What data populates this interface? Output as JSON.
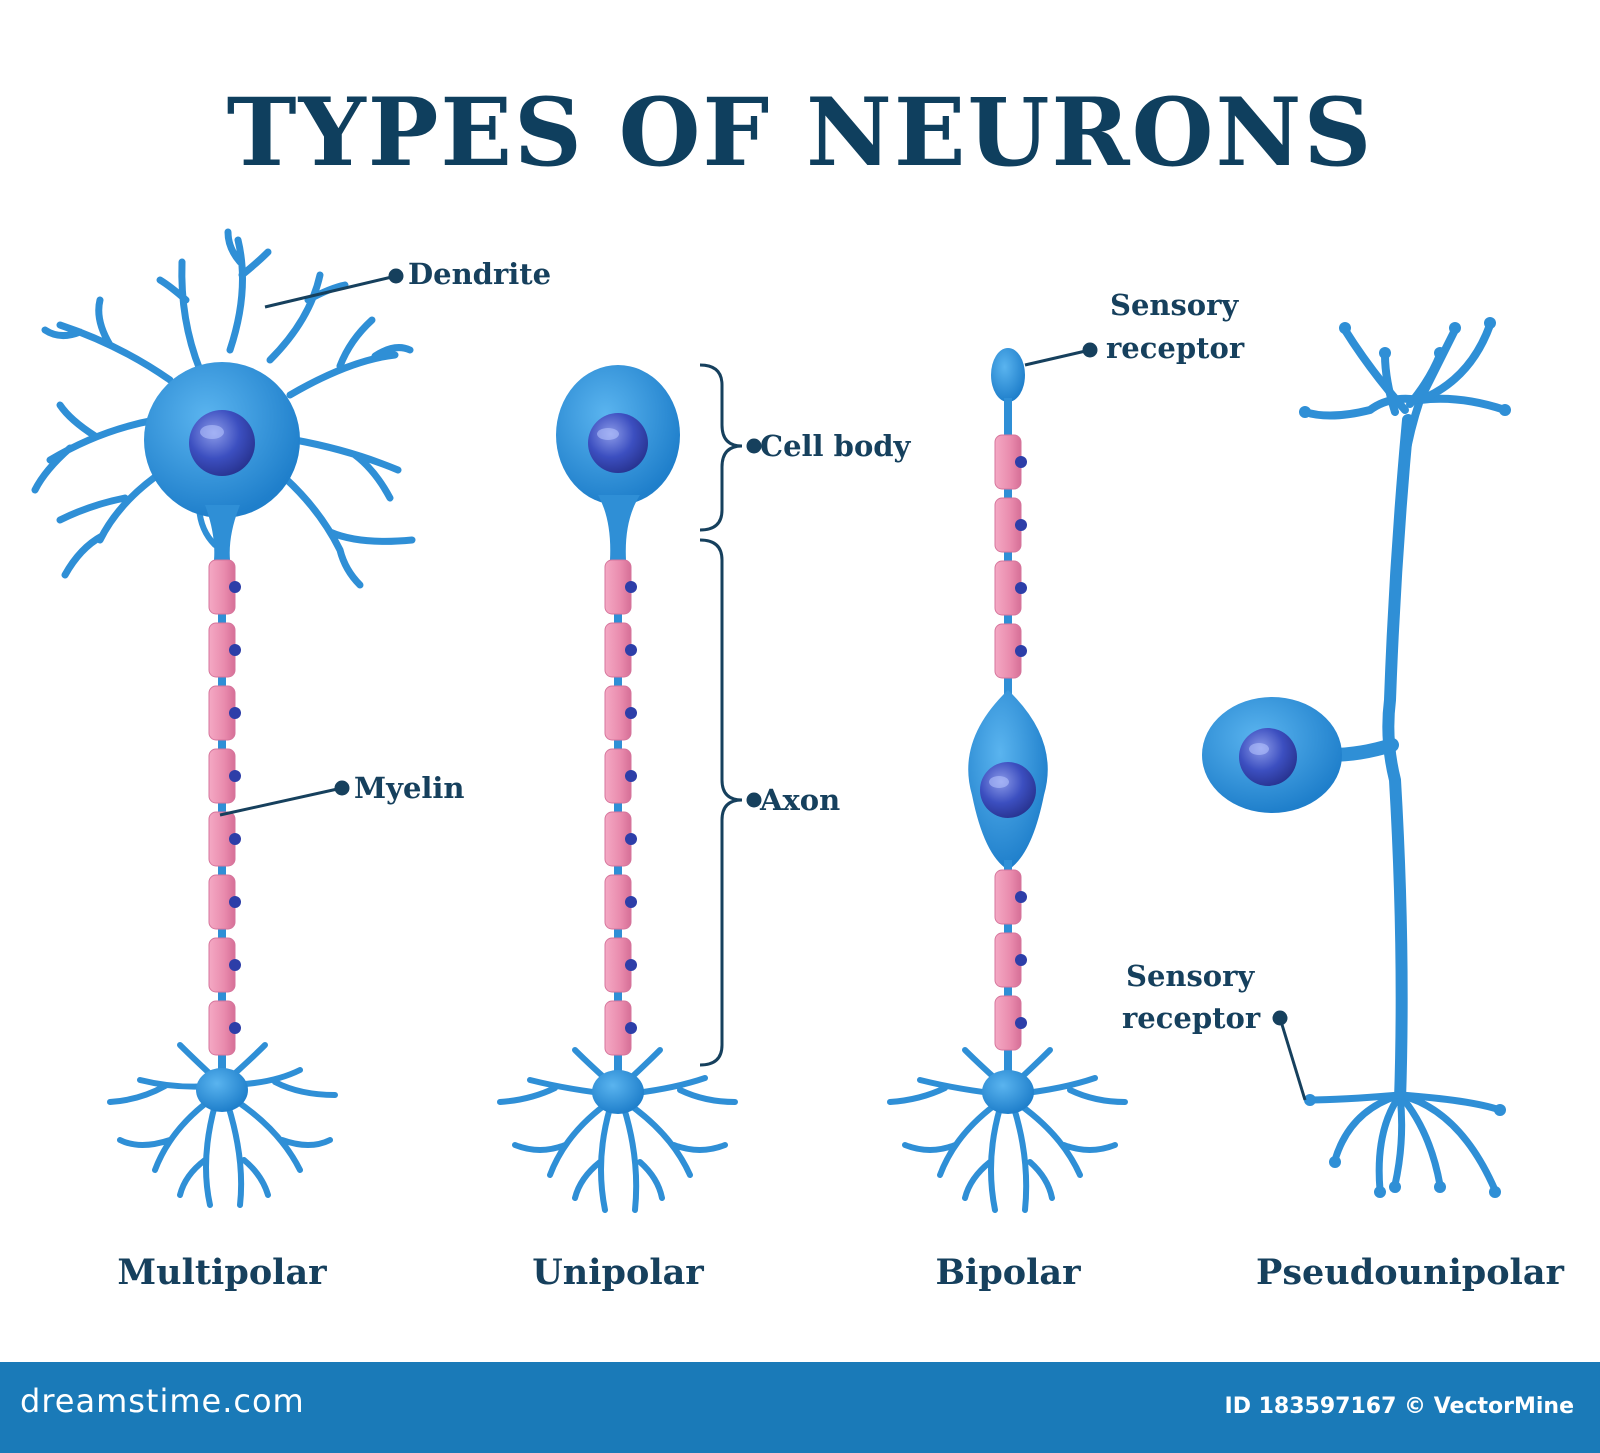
{
  "title": "TYPES OF NEURONS",
  "labels": {
    "dendrite": "Dendrite",
    "myelin": "Myelin",
    "cell_body": "Cell body",
    "axon": "Axon",
    "sensory_receptor_top_line1": "Sensory",
    "sensory_receptor_top_line2": "receptor",
    "sensory_receptor_bottom_line1": "Sensory",
    "sensory_receptor_bottom_line2": "receptor"
  },
  "neuron_types": [
    "Multipolar",
    "Unipolar",
    "Bipolar",
    "Pseudounipolar"
  ],
  "footer": {
    "brand": "dreamstime.com",
    "credit": "ID 183597167 © VectorMine"
  },
  "colors": {
    "title": "#0f3f5e",
    "neuron_body": "#2f8fd6",
    "nucleus": "#3a49b8",
    "myelin": "#ea8fb0",
    "footer_bar": "#1a7ab8"
  }
}
